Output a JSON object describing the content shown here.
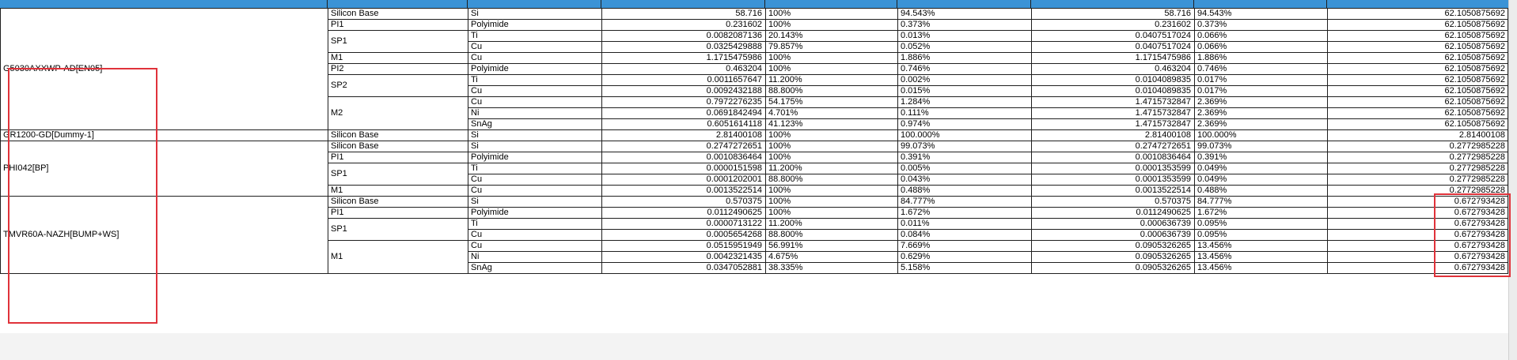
{
  "table": {
    "groups": [
      {
        "name": "G5030AXXWP-AD[EN05]",
        "layers": [
          {
            "name": "Silicon Base",
            "rows": [
              {
                "material": "Si",
                "c4": "58.716",
                "c5": "100%",
                "c6": "94.543%",
                "c7": "58.716",
                "c8": "94.543%",
                "c9": "62.1050875692"
              }
            ]
          },
          {
            "name": "PI1",
            "rows": [
              {
                "material": "Polyimide",
                "c4": "0.231602",
                "c5": "100%",
                "c6": "0.373%",
                "c7": "0.231602",
                "c8": "0.373%",
                "c9": "62.1050875692"
              }
            ]
          },
          {
            "name": "SP1",
            "rows": [
              {
                "material": "Ti",
                "c4": "0.0082087136",
                "c5": "20.143%",
                "c6": "0.013%",
                "c7": "0.0407517024",
                "c8": "0.066%",
                "c9": "62.1050875692"
              },
              {
                "material": "Cu",
                "c4": "0.0325429888",
                "c5": "79.857%",
                "c6": "0.052%",
                "c7": "0.0407517024",
                "c8": "0.066%",
                "c9": "62.1050875692"
              }
            ]
          },
          {
            "name": "M1",
            "rows": [
              {
                "material": "Cu",
                "c4": "1.1715475986",
                "c5": "100%",
                "c6": "1.886%",
                "c7": "1.1715475986",
                "c8": "1.886%",
                "c9": "62.1050875692"
              }
            ]
          },
          {
            "name": "PI2",
            "rows": [
              {
                "material": "Polyimide",
                "c4": "0.463204",
                "c5": "100%",
                "c6": "0.746%",
                "c7": "0.463204",
                "c8": "0.746%",
                "c9": "62.1050875692"
              }
            ]
          },
          {
            "name": "SP2",
            "rows": [
              {
                "material": "Ti",
                "c4": "0.0011657647",
                "c5": "11.200%",
                "c6": "0.002%",
                "c7": "0.0104089835",
                "c8": "0.017%",
                "c9": "62.1050875692"
              },
              {
                "material": "Cu",
                "c4": "0.0092432188",
                "c5": "88.800%",
                "c6": "0.015%",
                "c7": "0.0104089835",
                "c8": "0.017%",
                "c9": "62.1050875692"
              }
            ]
          },
          {
            "name": "M2",
            "rows": [
              {
                "material": "Cu",
                "c4": "0.7972276235",
                "c5": "54.175%",
                "c6": "1.284%",
                "c7": "1.4715732847",
                "c8": "2.369%",
                "c9": "62.1050875692"
              },
              {
                "material": "Ni",
                "c4": "0.0691842494",
                "c5": "4.701%",
                "c6": "0.111%",
                "c7": "1.4715732847",
                "c8": "2.369%",
                "c9": "62.1050875692"
              },
              {
                "material": "SnAg",
                "c4": "0.6051614118",
                "c5": "41.123%",
                "c6": "0.974%",
                "c7": "1.4715732847",
                "c8": "2.369%",
                "c9": "62.1050875692"
              }
            ]
          }
        ]
      },
      {
        "name": "GR1200-GD[Dummy-1]",
        "layers": [
          {
            "name": "Silicon Base",
            "rows": [
              {
                "material": "Si",
                "c4": "2.81400108",
                "c5": "100%",
                "c6": "100.000%",
                "c7": "2.81400108",
                "c8": "100.000%",
                "c9": "2.81400108"
              }
            ]
          }
        ]
      },
      {
        "name": "PHI042[BP]",
        "layers": [
          {
            "name": "Silicon Base",
            "rows": [
              {
                "material": "Si",
                "c4": "0.2747272651",
                "c5": "100%",
                "c6": "99.073%",
                "c7": "0.2747272651",
                "c8": "99.073%",
                "c9": "0.2772985228"
              }
            ]
          },
          {
            "name": "PI1",
            "rows": [
              {
                "material": "Polyimide",
                "c4": "0.0010836464",
                "c5": "100%",
                "c6": "0.391%",
                "c7": "0.0010836464",
                "c8": "0.391%",
                "c9": "0.2772985228"
              }
            ]
          },
          {
            "name": "SP1",
            "rows": [
              {
                "material": "Ti",
                "c4": "0.0000151598",
                "c5": "11.200%",
                "c6": "0.005%",
                "c7": "0.0001353599",
                "c8": "0.049%",
                "c9": "0.2772985228"
              },
              {
                "material": "Cu",
                "c4": "0.0001202001",
                "c5": "88.800%",
                "c6": "0.043%",
                "c7": "0.0001353599",
                "c8": "0.049%",
                "c9": "0.2772985228"
              }
            ]
          },
          {
            "name": "M1",
            "rows": [
              {
                "material": "Cu",
                "c4": "0.0013522514",
                "c5": "100%",
                "c6": "0.488%",
                "c7": "0.0013522514",
                "c8": "0.488%",
                "c9": "0.2772985228"
              }
            ]
          }
        ]
      },
      {
        "name": "TMVR60A-NAZH[BUMP+WS]",
        "layers": [
          {
            "name": "Silicon Base",
            "rows": [
              {
                "material": "Si",
                "c4": "0.570375",
                "c5": "100%",
                "c6": "84.777%",
                "c7": "0.570375",
                "c8": "84.777%",
                "c9": "0.672793428"
              }
            ]
          },
          {
            "name": "PI1",
            "rows": [
              {
                "material": "Polyimide",
                "c4": "0.0112490625",
                "c5": "100%",
                "c6": "1.672%",
                "c7": "0.0112490625",
                "c8": "1.672%",
                "c9": "0.672793428"
              }
            ]
          },
          {
            "name": "SP1",
            "rows": [
              {
                "material": "Ti",
                "c4": "0.0000713122",
                "c5": "11.200%",
                "c6": "0.011%",
                "c7": "0.000636739",
                "c8": "0.095%",
                "c9": "0.672793428"
              },
              {
                "material": "Cu",
                "c4": "0.0005654268",
                "c5": "88.800%",
                "c6": "0.084%",
                "c7": "0.000636739",
                "c8": "0.095%",
                "c9": "0.672793428"
              }
            ]
          },
          {
            "name": "M1",
            "rows": [
              {
                "material": "Cu",
                "c4": "0.0515951949",
                "c5": "56.991%",
                "c6": "7.669%",
                "c7": "0.0905326265",
                "c8": "13.456%",
                "c9": "0.672793428"
              },
              {
                "material": "Ni",
                "c4": "0.0042321435",
                "c5": "4.675%",
                "c6": "0.629%",
                "c7": "0.0905326265",
                "c8": "13.456%",
                "c9": "0.672793428"
              },
              {
                "material": "SnAg",
                "c4": "0.0347052881",
                "c5": "38.335%",
                "c6": "5.158%",
                "c7": "0.0905326265",
                "c8": "13.456%",
                "c9": "0.672793428"
              }
            ]
          }
        ]
      }
    ]
  },
  "colors": {
    "header_bar": "#3b93d6",
    "highlight_box": "#e0323a",
    "grid_line": "#1f1f1f"
  }
}
